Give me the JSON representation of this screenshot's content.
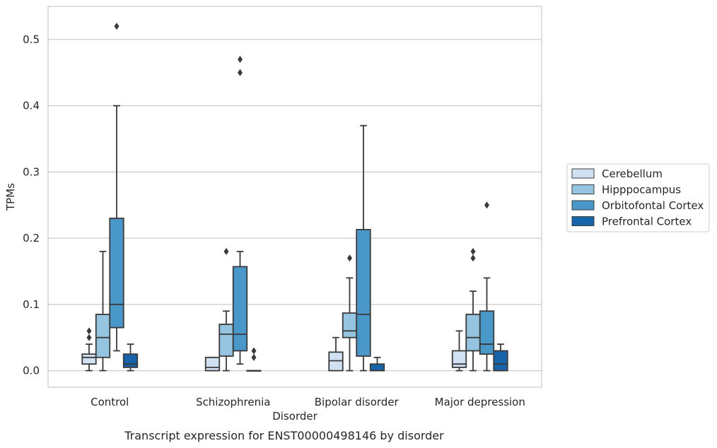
{
  "chart_data": {
    "type": "box",
    "xlabel": "Disorder",
    "ylabel": "TPMs",
    "caption": "Transcript expression for ENST00000498146 by disorder",
    "ylim": [
      -0.025,
      0.55
    ],
    "yticks": [
      "0.0",
      "0.1",
      "0.2",
      "0.3",
      "0.4",
      "0.5"
    ],
    "ytick_values": [
      0.0,
      0.1,
      0.2,
      0.3,
      0.4,
      0.5
    ],
    "grid": "horizontal",
    "legend_position": "right",
    "categories": [
      "Control",
      "Schizophrenia",
      "Bipolar disorder",
      "Major depression"
    ],
    "series": [
      {
        "name": "Cerebellum",
        "color": "#cfe1f2",
        "boxes": [
          {
            "whislo": 0.0,
            "q1": 0.01,
            "med": 0.02,
            "q3": 0.025,
            "whishi": 0.04,
            "fliers": [
              0.05,
              0.06
            ]
          },
          {
            "whislo": 0.0,
            "q1": 0.0,
            "med": 0.005,
            "q3": 0.02,
            "whishi": 0.02,
            "fliers": []
          },
          {
            "whislo": 0.0,
            "q1": 0.0,
            "med": 0.015,
            "q3": 0.028,
            "whishi": 0.05,
            "fliers": []
          },
          {
            "whislo": 0.0,
            "q1": 0.005,
            "med": 0.01,
            "q3": 0.03,
            "whishi": 0.06,
            "fliers": []
          }
        ]
      },
      {
        "name": "Hipppocampus",
        "color": "#94c4df",
        "boxes": [
          {
            "whislo": 0.0,
            "q1": 0.02,
            "med": 0.05,
            "q3": 0.085,
            "whishi": 0.18,
            "fliers": []
          },
          {
            "whislo": 0.0,
            "q1": 0.022,
            "med": 0.055,
            "q3": 0.07,
            "whishi": 0.09,
            "fliers": [
              0.18
            ]
          },
          {
            "whislo": 0.0,
            "q1": 0.05,
            "med": 0.06,
            "q3": 0.087,
            "whishi": 0.14,
            "fliers": [
              0.17
            ]
          },
          {
            "whislo": 0.0,
            "q1": 0.03,
            "med": 0.05,
            "q3": 0.085,
            "whishi": 0.12,
            "fliers": [
              0.17,
              0.18
            ]
          }
        ]
      },
      {
        "name": "Orbitofontal Cortex",
        "color": "#4a98c9",
        "boxes": [
          {
            "whislo": 0.03,
            "q1": 0.065,
            "med": 0.1,
            "q3": 0.23,
            "whishi": 0.4,
            "fliers": [
              0.52
            ]
          },
          {
            "whislo": 0.01,
            "q1": 0.03,
            "med": 0.055,
            "q3": 0.157,
            "whishi": 0.18,
            "fliers": [
              0.45,
              0.47
            ]
          },
          {
            "whislo": 0.0,
            "q1": 0.022,
            "med": 0.085,
            "q3": 0.213,
            "whishi": 0.37,
            "fliers": []
          },
          {
            "whislo": 0.0,
            "q1": 0.025,
            "med": 0.04,
            "q3": 0.09,
            "whishi": 0.14,
            "fliers": [
              0.25
            ]
          }
        ]
      },
      {
        "name": "Prefrontal Cortex",
        "color": "#1764ab",
        "boxes": [
          {
            "whislo": 0.0,
            "q1": 0.005,
            "med": 0.01,
            "q3": 0.025,
            "whishi": 0.04,
            "fliers": []
          },
          {
            "whislo": 0.0,
            "q1": 0.0,
            "med": 0.0,
            "q3": 0.0,
            "whishi": 0.0,
            "fliers": [
              0.02,
              0.03
            ]
          },
          {
            "whislo": 0.0,
            "q1": 0.0,
            "med": 0.0,
            "q3": 0.01,
            "whishi": 0.02,
            "fliers": []
          },
          {
            "whislo": 0.0,
            "q1": 0.0,
            "med": 0.01,
            "q3": 0.03,
            "whishi": 0.04,
            "fliers": []
          }
        ]
      }
    ]
  }
}
